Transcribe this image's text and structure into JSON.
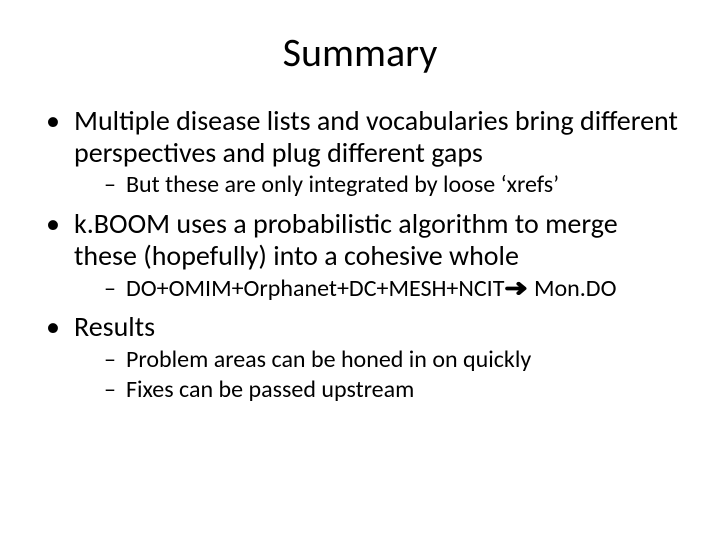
{
  "title": "Summary",
  "bullets": {
    "b1": {
      "text": "Multiple disease lists and vocabularies bring different perspectives and plug different gaps",
      "sub": {
        "s1": "But these are only integrated by loose ‘xrefs’"
      }
    },
    "b2": {
      "text": "k.BOOM uses a probabilistic algorithm to merge these (hopefully) into a cohesive whole",
      "sub": {
        "s1_pre": "DO+OMIM+Orphanet+DC+MESH+NCIT",
        "s1_arrow": "➜",
        "s1_post": " Mon.DO"
      }
    },
    "b3": {
      "text": "Results",
      "sub": {
        "s1": "Problem areas can be honed in on quickly",
        "s2": "Fixes can be passed upstream"
      }
    }
  }
}
